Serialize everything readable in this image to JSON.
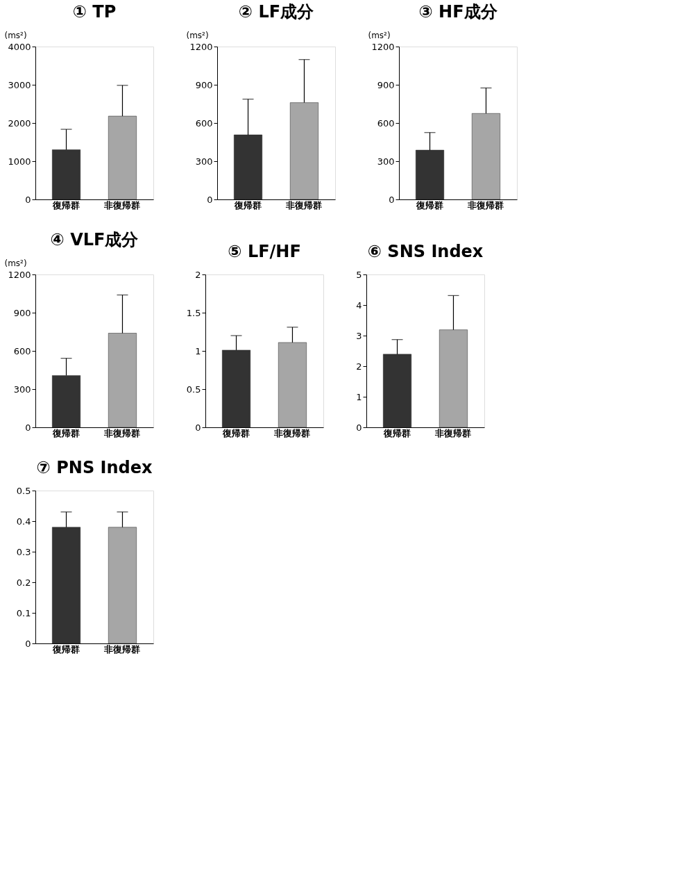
{
  "chart_data": [
    {
      "type": "bar",
      "title": "① TP",
      "ylabel": "(ms²)",
      "categories": [
        "復帰群",
        "非復帰群"
      ],
      "values": [
        1300,
        2180
      ],
      "colors": [
        "#333333",
        "#a6a6a6"
      ],
      "errors": [
        [
          1300,
          1835
        ],
        [
          2180,
          2985
        ]
      ],
      "ylim": [
        0,
        4000
      ],
      "yticks": [
        0,
        1000,
        2000,
        3000,
        4000
      ]
    },
    {
      "type": "bar",
      "title": "② LF成分",
      "ylabel": "(ms²)",
      "categories": [
        "復帰群",
        "非復帰群"
      ],
      "values": [
        507,
        760
      ],
      "colors": [
        "#333333",
        "#a6a6a6"
      ],
      "errors": [
        [
          507,
          787
        ],
        [
          760,
          1098
        ]
      ],
      "ylim": [
        0,
        1200
      ],
      "yticks": [
        0,
        300,
        600,
        900,
        1200
      ]
    },
    {
      "type": "bar",
      "title": "③ HF成分",
      "ylabel": "(ms²)",
      "categories": [
        "復帰群",
        "非復帰群"
      ],
      "values": [
        387,
        675
      ],
      "colors": [
        "#333333",
        "#a6a6a6"
      ],
      "errors": [
        [
          387,
          525
        ],
        [
          675,
          875
        ]
      ],
      "ylim": [
        0,
        1200
      ],
      "yticks": [
        0,
        300,
        600,
        900,
        1200
      ]
    },
    {
      "type": "bar",
      "title": "④ VLF成分",
      "ylabel": "(ms²)",
      "categories": [
        "復帰群",
        "非復帰群"
      ],
      "values": [
        407,
        739
      ],
      "colors": [
        "#333333",
        "#a6a6a6"
      ],
      "errors": [
        [
          407,
          542
        ],
        [
          739,
          1039
        ]
      ],
      "ylim": [
        0,
        1200
      ],
      "yticks": [
        0,
        300,
        600,
        900,
        1200
      ]
    },
    {
      "type": "bar",
      "title": "⑤ LF/HF",
      "categories": [
        "復帰群",
        "非復帰群"
      ],
      "values": [
        1.01,
        1.11
      ],
      "colors": [
        "#333333",
        "#a6a6a6"
      ],
      "errors": [
        [
          1.01,
          1.2
        ],
        [
          1.11,
          1.31
        ]
      ],
      "ylim": [
        0,
        2
      ],
      "yticks": [
        0,
        0.5,
        1,
        1.5,
        2
      ]
    },
    {
      "type": "bar",
      "title": "⑥ SNS Index",
      "categories": [
        "復帰群",
        "非復帰群"
      ],
      "values": [
        2.39,
        3.19
      ],
      "colors": [
        "#333333",
        "#a6a6a6"
      ],
      "errors": [
        [
          2.39,
          2.87
        ],
        [
          3.19,
          4.31
        ]
      ],
      "ylim": [
        0,
        5
      ],
      "yticks": [
        0,
        1,
        2,
        3,
        4,
        5
      ]
    },
    {
      "type": "bar",
      "title": "⑦ PNS Index",
      "categories": [
        "復帰群",
        "非復帰群"
      ],
      "values": [
        0.38,
        0.38
      ],
      "colors": [
        "#333333",
        "#a6a6a6"
      ],
      "errors": [
        [
          0.38,
          0.43
        ],
        [
          0.38,
          0.43
        ]
      ],
      "ylim": [
        0,
        0.5
      ],
      "yticks": [
        0,
        0.1,
        0.2,
        0.3,
        0.4,
        0.5
      ]
    }
  ]
}
